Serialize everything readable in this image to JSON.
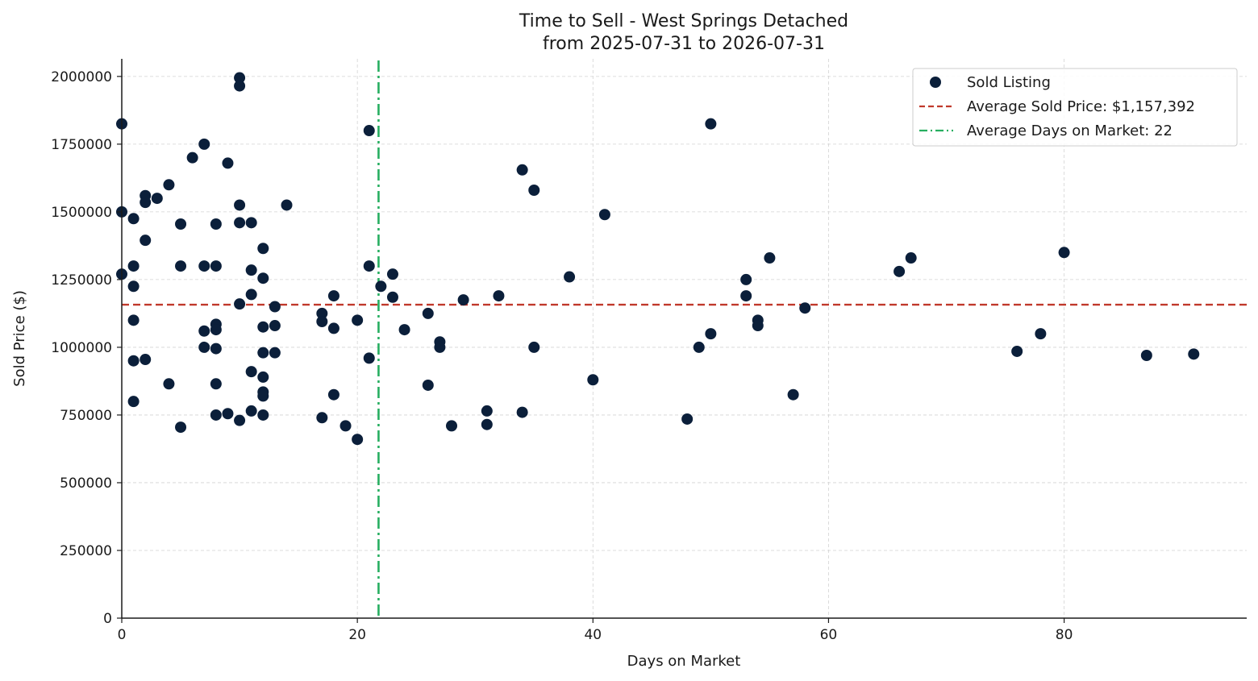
{
  "chart_data": {
    "type": "scatter",
    "title": "Time to Sell - West Springs Detached",
    "subtitle": "from 2025-07-31 to 2026-07-31",
    "xlabel": "Days on Market",
    "ylabel": "Sold Price ($)",
    "xlim": [
      0,
      95.5
    ],
    "ylim": [
      0,
      2065000
    ],
    "x_ticks": [
      0,
      20,
      40,
      60,
      80
    ],
    "x_tick_labels": [
      "0",
      "20",
      "40",
      "60",
      "80"
    ],
    "y_ticks": [
      0,
      250000,
      500000,
      750000,
      1000000,
      1250000,
      1500000,
      1750000,
      2000000
    ],
    "y_tick_labels": [
      "0",
      "250000",
      "500000",
      "750000",
      "1000000",
      "1250000",
      "1500000",
      "1750000",
      "2000000"
    ],
    "grid": true,
    "legend_position": "top-right",
    "legend": [
      {
        "label": "Sold Listing",
        "marker": "circle",
        "color": "#0b1f3a"
      },
      {
        "label": "Average Sold Price: $1,157,392",
        "marker": "dashed-line",
        "color": "#c0392b"
      },
      {
        "label": "Average Days on Market: 22",
        "marker": "dashdot-line",
        "color": "#27ae60"
      }
    ],
    "reference_lines": {
      "avg_price": 1157392,
      "avg_days": 21.8
    },
    "series": [
      {
        "name": "Sold Listing",
        "color": "#0b1f3a",
        "points": [
          [
            0,
            1825000
          ],
          [
            0,
            1500000
          ],
          [
            0,
            1270000
          ],
          [
            1,
            1475000
          ],
          [
            1,
            1300000
          ],
          [
            1,
            1225000
          ],
          [
            1,
            1100000
          ],
          [
            1,
            950000
          ],
          [
            1,
            800000
          ],
          [
            2,
            1560000
          ],
          [
            2,
            1535000
          ],
          [
            2,
            1395000
          ],
          [
            2,
            955000
          ],
          [
            3,
            1550000
          ],
          [
            4,
            1600000
          ],
          [
            4,
            865000
          ],
          [
            5,
            1455000
          ],
          [
            5,
            1300000
          ],
          [
            5,
            705000
          ],
          [
            6,
            1700000
          ],
          [
            7,
            1750000
          ],
          [
            7,
            1300000
          ],
          [
            7,
            1060000
          ],
          [
            7,
            1000000
          ],
          [
            8,
            1455000
          ],
          [
            8,
            1300000
          ],
          [
            8,
            1085000
          ],
          [
            8,
            1065000
          ],
          [
            8,
            995000
          ],
          [
            8,
            865000
          ],
          [
            8,
            750000
          ],
          [
            9,
            1680000
          ],
          [
            9,
            755000
          ],
          [
            10,
            1995000
          ],
          [
            10,
            1965000
          ],
          [
            10,
            1525000
          ],
          [
            10,
            1460000
          ],
          [
            10,
            1160000
          ],
          [
            10,
            730000
          ],
          [
            11,
            1460000
          ],
          [
            11,
            1285000
          ],
          [
            11,
            1195000
          ],
          [
            11,
            910000
          ],
          [
            11,
            765000
          ],
          [
            12,
            1365000
          ],
          [
            12,
            1255000
          ],
          [
            12,
            1075000
          ],
          [
            12,
            980000
          ],
          [
            12,
            890000
          ],
          [
            12,
            835000
          ],
          [
            12,
            820000
          ],
          [
            12,
            750000
          ],
          [
            13,
            1150000
          ],
          [
            13,
            1080000
          ],
          [
            13,
            980000
          ],
          [
            14,
            1525000
          ],
          [
            17,
            1125000
          ],
          [
            17,
            1095000
          ],
          [
            17,
            740000
          ],
          [
            18,
            1190000
          ],
          [
            18,
            1070000
          ],
          [
            18,
            825000
          ],
          [
            19,
            710000
          ],
          [
            20,
            1100000
          ],
          [
            20,
            660000
          ],
          [
            21,
            1800000
          ],
          [
            21,
            1300000
          ],
          [
            21,
            960000
          ],
          [
            22,
            1225000
          ],
          [
            23,
            1270000
          ],
          [
            23,
            1185000
          ],
          [
            24,
            1065000
          ],
          [
            26,
            1125000
          ],
          [
            26,
            860000
          ],
          [
            27,
            1020000
          ],
          [
            27,
            1000000
          ],
          [
            28,
            710000
          ],
          [
            29,
            1175000
          ],
          [
            31,
            765000
          ],
          [
            31,
            715000
          ],
          [
            32,
            1190000
          ],
          [
            34,
            1655000
          ],
          [
            34,
            760000
          ],
          [
            35,
            1580000
          ],
          [
            35,
            1000000
          ],
          [
            38,
            1260000
          ],
          [
            40,
            880000
          ],
          [
            41,
            1490000
          ],
          [
            48,
            735000
          ],
          [
            49,
            1000000
          ],
          [
            50,
            1825000
          ],
          [
            50,
            1050000
          ],
          [
            53,
            1250000
          ],
          [
            53,
            1190000
          ],
          [
            54,
            1100000
          ],
          [
            54,
            1080000
          ],
          [
            55,
            1330000
          ],
          [
            57,
            825000
          ],
          [
            58,
            1145000
          ],
          [
            66,
            1280000
          ],
          [
            67,
            1330000
          ],
          [
            76,
            985000
          ],
          [
            78,
            1050000
          ],
          [
            80,
            1350000
          ],
          [
            87,
            970000
          ],
          [
            91,
            975000
          ]
        ]
      }
    ]
  }
}
